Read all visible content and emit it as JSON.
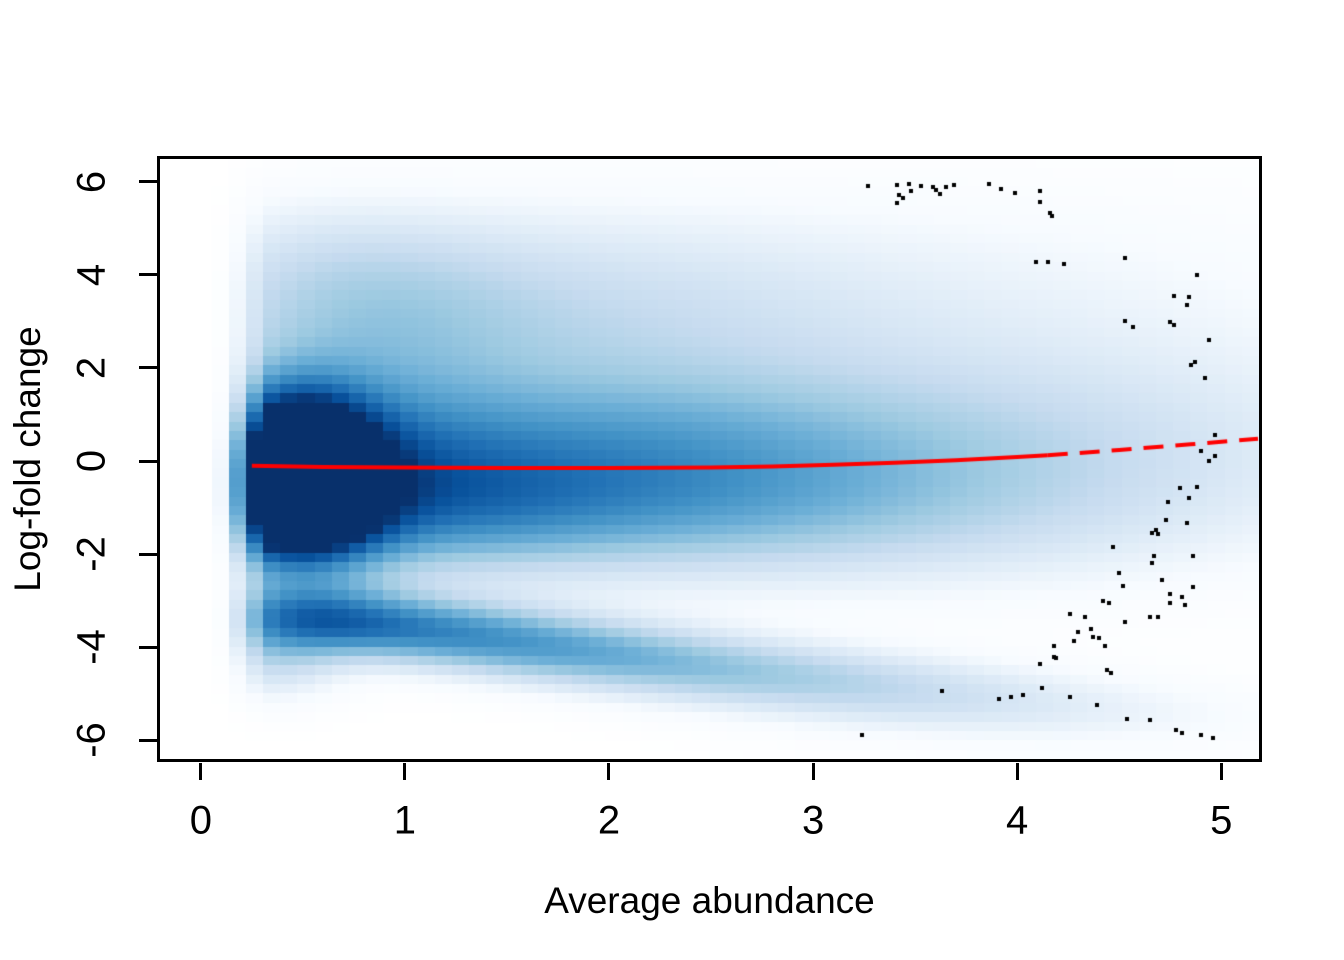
{
  "chart_data": {
    "type": "heatmap",
    "subtype": "smooth-scatter-density (MA plot)",
    "title": "",
    "xlabel": "Average abundance",
    "ylabel": "Log-fold change",
    "xlim": [
      -0.2,
      5.185
    ],
    "ylim": [
      -6.4,
      6.49
    ],
    "x_ticks": [
      0,
      1,
      2,
      3,
      4,
      5
    ],
    "y_ticks": [
      -6,
      -4,
      -2,
      0,
      2,
      4,
      6
    ],
    "grid": false,
    "legend": "none",
    "colors": {
      "background": "#FFFFFF",
      "axis": "#000000",
      "text": "#000000",
      "trend_line": "#FF0000",
      "outlier_points": "#000000",
      "colormap_white_to_dark_blue": [
        "#FFFFFF",
        "#F7FBFF",
        "#DEEBF7",
        "#C6DBEF",
        "#9ECAE1",
        "#6BAED6",
        "#4292C6",
        "#2171B5",
        "#08519C",
        "#08306B"
      ]
    },
    "density": {
      "grid": 64,
      "power": 0.85,
      "x_cutoff": 0.07,
      "x_fade": 0.25,
      "blobs_cx_cy_sx_sy_amp": [
        [
          0.45,
          0.0,
          0.27,
          1.05,
          1.4
        ],
        [
          0.85,
          0.2,
          0.45,
          1.2,
          0.3
        ],
        [
          1.5,
          0.25,
          0.75,
          1.15,
          0.26
        ],
        [
          2.3,
          0.25,
          0.85,
          1.2,
          0.19
        ],
        [
          3.1,
          0.3,
          0.95,
          1.3,
          0.13
        ],
        [
          4.0,
          0.35,
          1.1,
          1.5,
          0.09
        ],
        [
          4.9,
          0.45,
          1.1,
          1.7,
          0.05
        ],
        [
          0.75,
          3.1,
          0.6,
          1.3,
          0.22
        ],
        [
          1.7,
          2.9,
          1.0,
          1.35,
          0.16
        ],
        [
          0.5,
          4.5,
          0.5,
          1.0,
          0.05
        ],
        [
          1.5,
          4.8,
          1.0,
          1.0,
          0.035
        ],
        [
          2.8,
          3.3,
          1.3,
          1.5,
          0.08
        ],
        [
          4.0,
          4.6,
          1.6,
          1.4,
          0.03
        ],
        [
          4.6,
          1.5,
          1.3,
          2.2,
          0.05
        ],
        [
          0.45,
          -1.3,
          0.3,
          0.85,
          0.7
        ],
        [
          1.1,
          -1.1,
          0.6,
          0.95,
          0.3
        ],
        [
          2.0,
          -1.1,
          0.85,
          1.0,
          0.2
        ],
        [
          3.0,
          -1.2,
          1.0,
          1.1,
          0.12
        ],
        [
          4.0,
          -1.3,
          1.2,
          1.3,
          0.06
        ],
        [
          0.5,
          -3.3,
          0.35,
          0.5,
          0.5
        ],
        [
          1.0,
          -3.55,
          0.45,
          0.45,
          0.4
        ],
        [
          1.55,
          -3.9,
          0.5,
          0.45,
          0.33
        ],
        [
          2.1,
          -4.25,
          0.55,
          0.45,
          0.26
        ],
        [
          2.7,
          -4.6,
          0.6,
          0.45,
          0.2
        ],
        [
          3.3,
          -4.95,
          0.65,
          0.5,
          0.15
        ],
        [
          3.9,
          -5.3,
          0.7,
          0.5,
          0.09
        ],
        [
          4.6,
          -5.6,
          0.8,
          0.55,
          0.055
        ],
        [
          0.35,
          -4.3,
          0.25,
          0.6,
          0.22
        ]
      ]
    },
    "trend_line": {
      "color": "#FF0000",
      "width": 4,
      "dash_pattern": [
        20,
        12
      ],
      "solid_points": [
        [
          0.25,
          -0.1
        ],
        [
          0.6,
          -0.125
        ],
        [
          1.0,
          -0.14
        ],
        [
          1.5,
          -0.15
        ],
        [
          2.0,
          -0.15
        ],
        [
          2.5,
          -0.135
        ],
        [
          2.8,
          -0.115
        ],
        [
          3.1,
          -0.08
        ],
        [
          3.4,
          -0.035
        ],
        [
          3.7,
          0.02
        ],
        [
          4.0,
          0.09
        ],
        [
          4.15,
          0.125
        ]
      ],
      "dashed_points": [
        [
          4.15,
          0.125
        ],
        [
          4.5,
          0.24
        ],
        [
          4.85,
          0.36
        ],
        [
          5.18,
          0.48
        ]
      ]
    },
    "outlier_points": {
      "color": "#000000",
      "size": 4,
      "xy": [
        [
          3.27,
          5.91
        ],
        [
          3.41,
          5.94
        ],
        [
          3.42,
          5.72
        ],
        [
          3.47,
          5.96
        ],
        [
          3.48,
          5.81
        ],
        [
          3.41,
          5.55
        ],
        [
          3.44,
          5.66
        ],
        [
          3.53,
          5.91
        ],
        [
          3.59,
          5.89
        ],
        [
          3.6,
          5.83
        ],
        [
          3.62,
          5.74
        ],
        [
          3.65,
          5.89
        ],
        [
          3.69,
          5.94
        ],
        [
          3.86,
          5.96
        ],
        [
          3.92,
          5.85
        ],
        [
          3.99,
          5.77
        ],
        [
          4.11,
          5.81
        ],
        [
          4.11,
          5.57
        ],
        [
          4.16,
          5.34
        ],
        [
          4.17,
          5.27
        ],
        [
          4.09,
          4.28
        ],
        [
          4.15,
          4.28
        ],
        [
          4.23,
          4.23
        ],
        [
          4.53,
          4.36
        ],
        [
          4.88,
          4.0
        ],
        [
          4.77,
          3.55
        ],
        [
          4.84,
          3.53
        ],
        [
          4.83,
          3.36
        ],
        [
          4.53,
          3.02
        ],
        [
          4.57,
          2.89
        ],
        [
          4.75,
          2.98
        ],
        [
          4.77,
          2.92
        ],
        [
          4.94,
          2.6
        ],
        [
          4.87,
          2.13
        ],
        [
          4.85,
          2.06
        ],
        [
          4.92,
          1.79
        ],
        [
          4.97,
          0.57
        ],
        [
          4.9,
          0.21
        ],
        [
          4.97,
          0.11
        ],
        [
          4.94,
          0.0
        ],
        [
          4.88,
          -0.55
        ],
        [
          4.8,
          -0.57
        ],
        [
          4.84,
          -0.79
        ],
        [
          4.74,
          -0.87
        ],
        [
          4.73,
          -1.26
        ],
        [
          4.83,
          -1.32
        ],
        [
          4.68,
          -1.49
        ],
        [
          4.66,
          -1.55
        ],
        [
          4.69,
          -1.57
        ],
        [
          4.47,
          -1.84
        ],
        [
          4.67,
          -2.04
        ],
        [
          4.86,
          -2.04
        ],
        [
          4.66,
          -2.19
        ],
        [
          4.5,
          -2.4
        ],
        [
          4.52,
          -2.68
        ],
        [
          4.71,
          -2.55
        ],
        [
          4.86,
          -2.7
        ],
        [
          4.75,
          -2.85
        ],
        [
          4.81,
          -2.91
        ],
        [
          4.75,
          -3.04
        ],
        [
          4.82,
          -3.09
        ],
        [
          4.42,
          -3.0
        ],
        [
          4.45,
          -3.04
        ],
        [
          4.26,
          -3.28
        ],
        [
          4.33,
          -3.35
        ],
        [
          4.36,
          -3.6
        ],
        [
          4.3,
          -3.68
        ],
        [
          4.28,
          -3.87
        ],
        [
          4.37,
          -3.77
        ],
        [
          4.4,
          -3.8
        ],
        [
          4.43,
          -3.98
        ],
        [
          4.53,
          -3.45
        ],
        [
          4.65,
          -3.34
        ],
        [
          4.69,
          -3.36
        ],
        [
          4.18,
          -3.98
        ],
        [
          4.18,
          -4.21
        ],
        [
          4.19,
          -4.23
        ],
        [
          4.11,
          -4.36
        ],
        [
          4.44,
          -4.49
        ],
        [
          4.46,
          -4.55
        ],
        [
          4.26,
          -5.07
        ],
        [
          4.39,
          -5.24
        ],
        [
          4.54,
          -5.55
        ],
        [
          4.65,
          -5.57
        ],
        [
          4.78,
          -5.77
        ],
        [
          4.81,
          -5.85
        ],
        [
          4.9,
          -5.89
        ],
        [
          4.96,
          -5.94
        ],
        [
          3.24,
          -5.88
        ],
        [
          3.63,
          -4.94
        ],
        [
          3.91,
          -5.11
        ],
        [
          3.97,
          -5.07
        ],
        [
          4.03,
          -5.03
        ],
        [
          4.12,
          -4.87
        ]
      ]
    }
  }
}
